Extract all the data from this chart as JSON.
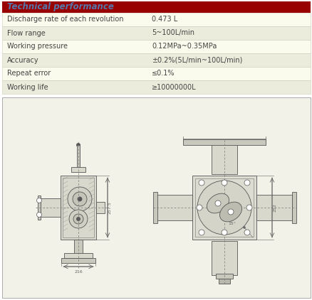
{
  "title": "Technical performance",
  "title_bg_color": "#990000",
  "title_text_color": "#5577aa",
  "table_rows": [
    [
      "Discharge rate of each revolution",
      "0.473 L"
    ],
    [
      "Flow range",
      "5~100L/min"
    ],
    [
      "Working pressure",
      "0.12MPa~0.35MPa"
    ],
    [
      "Accuracy",
      "±0.2%(5L/min~100L/min)"
    ],
    [
      "Repeat error",
      "≤0.1%"
    ],
    [
      "Working life",
      "≥10000000L"
    ]
  ],
  "row_colors": [
    "#fafaed",
    "#ececdc",
    "#fafaed",
    "#ececdc",
    "#fafaed",
    "#ececdc"
  ],
  "fig_width": 4.39,
  "fig_height": 4.22,
  "dpi": 100,
  "background_color": "#ffffff",
  "drawing_area_bg": "#f2f2e8",
  "drawing_border_color": "#aaaaaa",
  "table_font_size": 7.0,
  "header_font_size": 8.5,
  "dim_color": "#666666",
  "line_color": "#777777",
  "body_color": "#d8d8cc",
  "body_color2": "#c8c8bc",
  "body_edge": "#555555"
}
